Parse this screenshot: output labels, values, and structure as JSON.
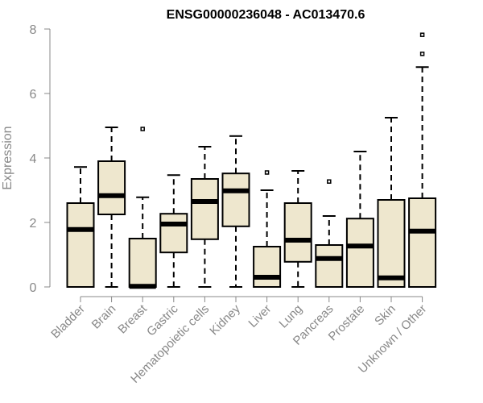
{
  "chart_data": {
    "type": "box",
    "title": "ENSG00000236048 - AC013470.6",
    "ylabel": "Expression",
    "xlabel": "",
    "ylim": [
      0,
      8
    ],
    "yticks": [
      0,
      2,
      4,
      6,
      8
    ],
    "grid": false,
    "legend": "none",
    "box_fill": "#EEE7CE",
    "box_stroke": "#000000",
    "categories": [
      "Bladder",
      "Brain",
      "Breast",
      "Gastric",
      "Hematopoietic cells",
      "Kidney",
      "Liver",
      "Lung",
      "Pancreas",
      "Prostate",
      "Skin",
      "Unknown / Other"
    ],
    "boxes": [
      {
        "category": "Bladder",
        "whisker_low": 0.0,
        "q1": 0.0,
        "median": 1.78,
        "q3": 2.6,
        "whisker_high": 3.72,
        "outliers": []
      },
      {
        "category": "Brain",
        "whisker_low": 0.0,
        "q1": 2.25,
        "median": 2.83,
        "q3": 3.9,
        "whisker_high": 4.95,
        "outliers": []
      },
      {
        "category": "Breast",
        "whisker_low": 0.0,
        "q1": 0.0,
        "median": 0.02,
        "q3": 1.5,
        "whisker_high": 2.78,
        "outliers": [
          4.9
        ]
      },
      {
        "category": "Gastric",
        "whisker_low": 0.0,
        "q1": 1.07,
        "median": 1.95,
        "q3": 2.27,
        "whisker_high": 3.47,
        "outliers": []
      },
      {
        "category": "Hematopoietic cells",
        "whisker_low": 0.0,
        "q1": 1.48,
        "median": 2.65,
        "q3": 3.35,
        "whisker_high": 4.35,
        "outliers": []
      },
      {
        "category": "Kidney",
        "whisker_low": 0.0,
        "q1": 1.88,
        "median": 2.98,
        "q3": 3.52,
        "whisker_high": 4.68,
        "outliers": []
      },
      {
        "category": "Liver",
        "whisker_low": 0.0,
        "q1": 0.0,
        "median": 0.3,
        "q3": 1.25,
        "whisker_high": 3.0,
        "outliers": [
          3.55
        ]
      },
      {
        "category": "Lung",
        "whisker_low": 0.0,
        "q1": 0.78,
        "median": 1.45,
        "q3": 2.6,
        "whisker_high": 3.6,
        "outliers": []
      },
      {
        "category": "Pancreas",
        "whisker_low": 0.0,
        "q1": 0.0,
        "median": 0.88,
        "q3": 1.3,
        "whisker_high": 2.2,
        "outliers": [
          3.27
        ]
      },
      {
        "category": "Prostate",
        "whisker_low": 0.0,
        "q1": 0.0,
        "median": 1.27,
        "q3": 2.12,
        "whisker_high": 4.2,
        "outliers": []
      },
      {
        "category": "Skin",
        "whisker_low": 0.0,
        "q1": 0.0,
        "median": 0.28,
        "q3": 2.7,
        "whisker_high": 5.25,
        "outliers": []
      },
      {
        "category": "Unknown / Other",
        "whisker_low": 0.0,
        "q1": 0.0,
        "median": 1.73,
        "q3": 2.75,
        "whisker_high": 6.82,
        "outliers": [
          7.23,
          7.82
        ]
      }
    ]
  }
}
